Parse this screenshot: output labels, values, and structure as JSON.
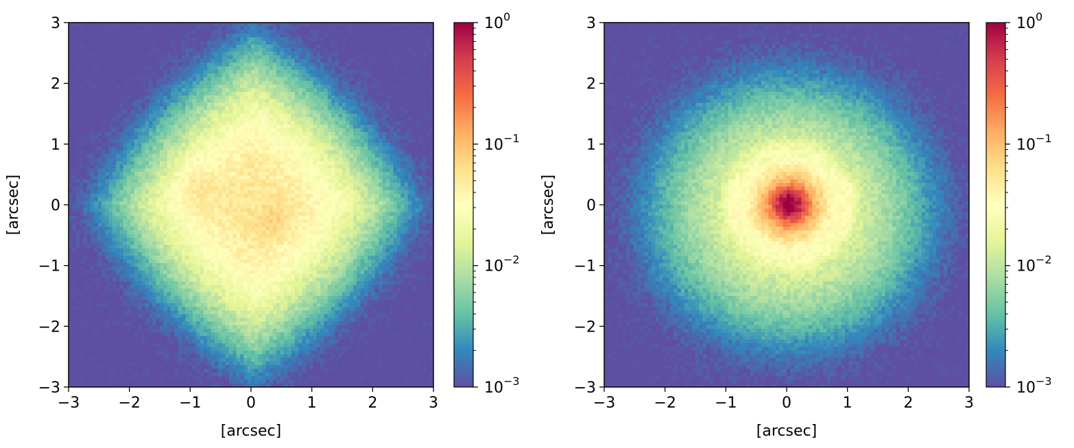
{
  "chart_data": [
    {
      "type": "heatmap",
      "title": "",
      "xlabel": "[arcsec]",
      "ylabel": "[arcsec]",
      "xlim": [
        -3,
        3
      ],
      "ylim": [
        -3,
        3
      ],
      "xticks": [
        -3,
        -2,
        -1,
        0,
        1,
        2,
        3
      ],
      "yticks": [
        -3,
        -2,
        -1,
        0,
        1,
        2,
        3
      ],
      "grid": false,
      "colormap": "Spectral_r",
      "color_scale": "log",
      "color_range": [
        0.001,
        1
      ],
      "colorbar_ticks": [
        "10^0",
        "10^-1",
        "10^-2",
        "10^-3"
      ],
      "description_of_distribution": {
        "shape": "diamond-shaped diffuse halo",
        "peaks": [
          {
            "x": -0.9,
            "y": 0.3,
            "value": 0.06
          },
          {
            "x": 0.4,
            "y": -0.3,
            "value": 0.06
          }
        ],
        "extent_arcsec": 2.2,
        "background_value": 0.001
      }
    },
    {
      "type": "heatmap",
      "title": "",
      "xlabel": "[arcsec]",
      "ylabel": "[arcsec]",
      "xlim": [
        -3,
        3
      ],
      "ylim": [
        -3,
        3
      ],
      "xticks": [
        -3,
        -2,
        -1,
        0,
        1,
        2,
        3
      ],
      "yticks": [
        -3,
        -2,
        -1,
        0,
        1,
        2,
        3
      ],
      "grid": false,
      "colormap": "Spectral_r",
      "color_scale": "log",
      "color_range": [
        0.001,
        1
      ],
      "colorbar_ticks": [
        "10^0",
        "10^-1",
        "10^-2",
        "10^-3"
      ],
      "description_of_distribution": {
        "shape": "bright compact core with ring and elliptical halo",
        "peaks": [
          {
            "x": 0.05,
            "y": 0.0,
            "value": 1.0
          }
        ],
        "ring_radius_arcsec": 0.9,
        "extent_arcsec": 2.0,
        "background_value": 0.001
      }
    }
  ],
  "colors": {
    "cmap_stops": [
      "#5e4fa2",
      "#3288bd",
      "#66c2a5",
      "#abdda4",
      "#e6f598",
      "#ffffbf",
      "#fee08b",
      "#fdae61",
      "#f46d43",
      "#d53e4f",
      "#9e0142"
    ]
  }
}
